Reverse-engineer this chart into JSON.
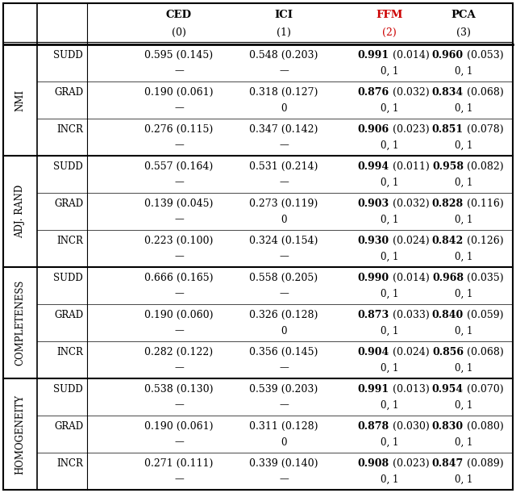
{
  "col_header_names": [
    "CED",
    "ICI",
    "FFM",
    "PCA"
  ],
  "col_header_nums": [
    "(0)",
    "(1)",
    "(2)",
    "(3)"
  ],
  "row_groups": [
    "NMI",
    "ADJ. RAND",
    "COMPLETENESS",
    "HOMOGENEITY"
  ],
  "row_labels": [
    "SUDD",
    "GRAD",
    "INCR"
  ],
  "ffm_col_index": 2,
  "table_data": [
    {
      "group": "NMI",
      "rows": [
        {
          "label": "SUDD",
          "values": [
            "0.595",
            "0.548",
            "0.991",
            "0.960"
          ],
          "stds": [
            " (0.145)",
            " (0.203)",
            " (0.014)",
            " (0.053)"
          ],
          "subvalues": [
            "—",
            "—",
            "0, 1",
            "0, 1"
          ],
          "bold": [
            false,
            false,
            true,
            true
          ]
        },
        {
          "label": "GRAD",
          "values": [
            "0.190",
            "0.318",
            "0.876",
            "0.834"
          ],
          "stds": [
            " (0.061)",
            " (0.127)",
            " (0.032)",
            " (0.068)"
          ],
          "subvalues": [
            "—",
            "0",
            "0, 1",
            "0, 1"
          ],
          "bold": [
            false,
            false,
            true,
            true
          ]
        },
        {
          "label": "INCR",
          "values": [
            "0.276",
            "0.347",
            "0.906",
            "0.851"
          ],
          "stds": [
            " (0.115)",
            " (0.142)",
            " (0.023)",
            " (0.078)"
          ],
          "subvalues": [
            "—",
            "—",
            "0, 1",
            "0, 1"
          ],
          "bold": [
            false,
            false,
            true,
            true
          ]
        }
      ]
    },
    {
      "group": "ADJ. RAND",
      "rows": [
        {
          "label": "SUDD",
          "values": [
            "0.557",
            "0.531",
            "0.994",
            "0.958"
          ],
          "stds": [
            " (0.164)",
            " (0.214)",
            " (0.011)",
            " (0.082)"
          ],
          "subvalues": [
            "—",
            "—",
            "0, 1",
            "0, 1"
          ],
          "bold": [
            false,
            false,
            true,
            true
          ]
        },
        {
          "label": "GRAD",
          "values": [
            "0.139",
            "0.273",
            "0.903",
            "0.828"
          ],
          "stds": [
            " (0.045)",
            " (0.119)",
            " (0.032)",
            " (0.116)"
          ],
          "subvalues": [
            "—",
            "0",
            "0, 1",
            "0, 1"
          ],
          "bold": [
            false,
            false,
            true,
            true
          ]
        },
        {
          "label": "INCR",
          "values": [
            "0.223",
            "0.324",
            "0.930",
            "0.842"
          ],
          "stds": [
            " (0.100)",
            " (0.154)",
            " (0.024)",
            " (0.126)"
          ],
          "subvalues": [
            "—",
            "—",
            "0, 1",
            "0, 1"
          ],
          "bold": [
            false,
            false,
            true,
            true
          ]
        }
      ]
    },
    {
      "group": "COMPLETENESS",
      "rows": [
        {
          "label": "SUDD",
          "values": [
            "0.666",
            "0.558",
            "0.990",
            "0.968"
          ],
          "stds": [
            " (0.165)",
            " (0.205)",
            " (0.014)",
            " (0.035)"
          ],
          "subvalues": [
            "—",
            "—",
            "0, 1",
            "0, 1"
          ],
          "bold": [
            false,
            false,
            true,
            true
          ]
        },
        {
          "label": "GRAD",
          "values": [
            "0.190",
            "0.326",
            "0.873",
            "0.840"
          ],
          "stds": [
            " (0.060)",
            " (0.128)",
            " (0.033)",
            " (0.059)"
          ],
          "subvalues": [
            "—",
            "0",
            "0, 1",
            "0, 1"
          ],
          "bold": [
            false,
            false,
            true,
            true
          ]
        },
        {
          "label": "INCR",
          "values": [
            "0.282",
            "0.356",
            "0.904",
            "0.856"
          ],
          "stds": [
            " (0.122)",
            " (0.145)",
            " (0.024)",
            " (0.068)"
          ],
          "subvalues": [
            "—",
            "—",
            "0, 1",
            "0, 1"
          ],
          "bold": [
            false,
            false,
            true,
            true
          ]
        }
      ]
    },
    {
      "group": "HOMOGENEITY",
      "rows": [
        {
          "label": "SUDD",
          "values": [
            "0.538",
            "0.539",
            "0.991",
            "0.954"
          ],
          "stds": [
            " (0.130)",
            " (0.203)",
            " (0.013)",
            " (0.070)"
          ],
          "subvalues": [
            "—",
            "—",
            "0, 1",
            "0, 1"
          ],
          "bold": [
            false,
            false,
            true,
            true
          ]
        },
        {
          "label": "GRAD",
          "values": [
            "0.190",
            "0.311",
            "0.878",
            "0.830"
          ],
          "stds": [
            " (0.061)",
            " (0.128)",
            " (0.030)",
            " (0.080)"
          ],
          "subvalues": [
            "—",
            "0",
            "0, 1",
            "0, 1"
          ],
          "bold": [
            false,
            false,
            true,
            true
          ]
        },
        {
          "label": "INCR",
          "values": [
            "0.271",
            "0.339",
            "0.908",
            "0.847"
          ],
          "stds": [
            " (0.111)",
            " (0.140)",
            " (0.023)",
            " (0.089)"
          ],
          "subvalues": [
            "—",
            "—",
            "0, 1",
            "0, 1"
          ],
          "bold": [
            false,
            false,
            true,
            true
          ]
        }
      ]
    }
  ],
  "ffm_color": "#cc0000",
  "normal_color": "#000000",
  "bg_color": "#ffffff",
  "line_color": "#000000"
}
